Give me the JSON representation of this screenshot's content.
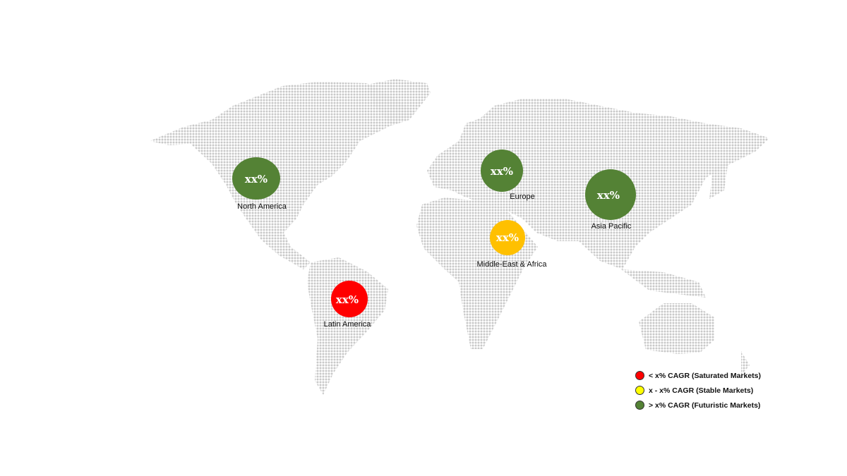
{
  "regions": [
    {
      "name": "North America",
      "value": "xx%",
      "color": "#548235"
    },
    {
      "name": "Europe",
      "value": "xx%",
      "color": "#548235"
    },
    {
      "name": "Asia Pacific",
      "value": "xx%",
      "color": "#548235"
    },
    {
      "name": "Middle-East & Africa",
      "value": "xx%",
      "color": "#FFC000"
    },
    {
      "name": "Latin America",
      "value": "xx%",
      "color": "#FF0000"
    }
  ],
  "legend": [
    {
      "label": "< x% CAGR (Saturated Markets)",
      "color": "#FF0000"
    },
    {
      "label": "x - x% CAGR (Stable Markets)",
      "color": "#FFFF00"
    },
    {
      "label": "> x% CAGR (Futuristic Markets)",
      "color": "#548235"
    }
  ]
}
